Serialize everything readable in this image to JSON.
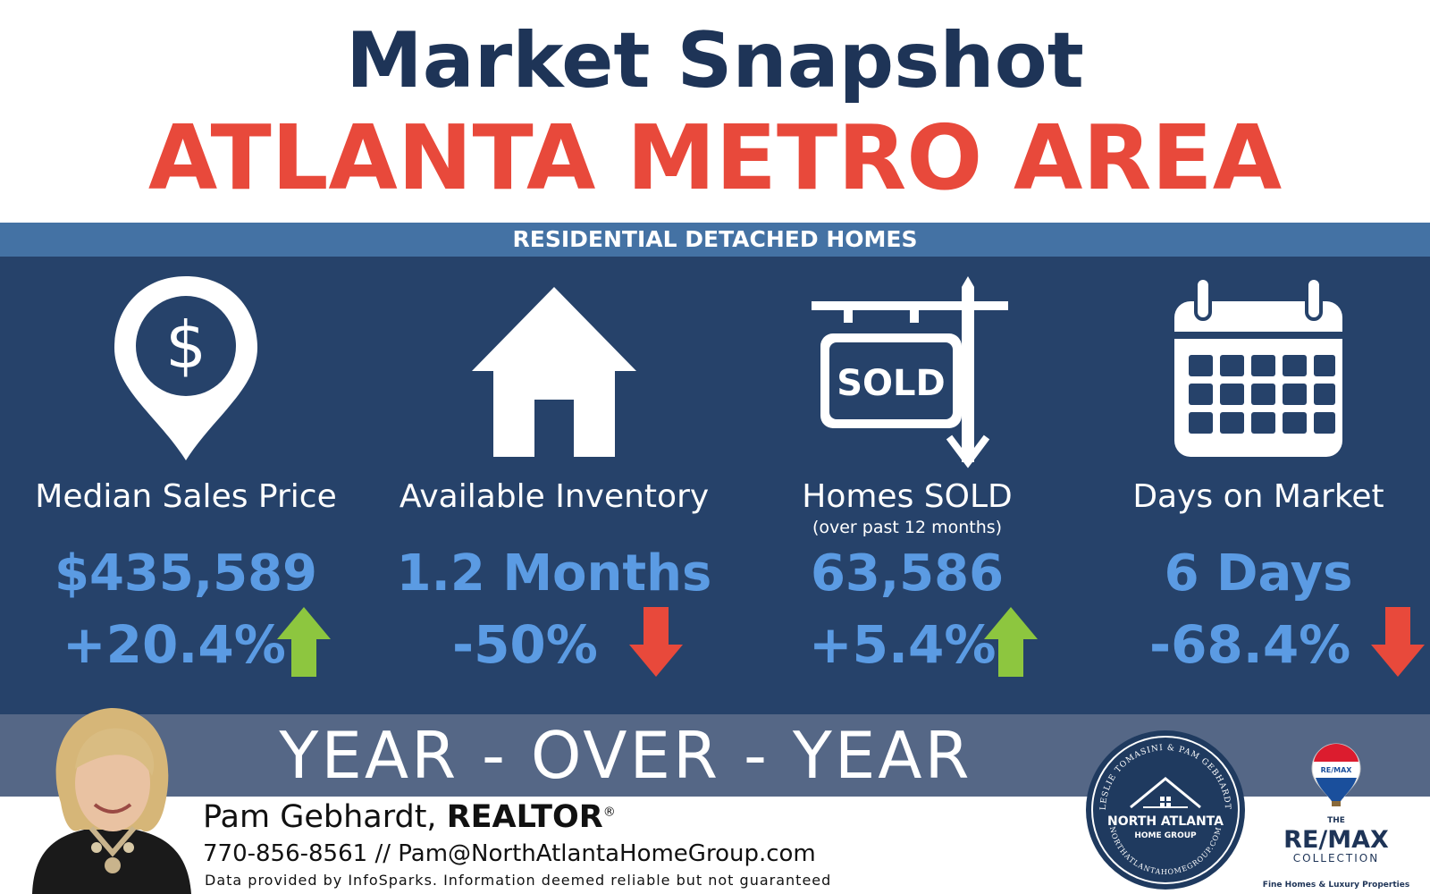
{
  "header": {
    "title": "Market Snapshot",
    "area": "ATLANTA METRO AREA"
  },
  "subheader": "RESIDENTIAL DETACHED HOMES",
  "stats": [
    {
      "icon": "dollar-location-pin-icon",
      "label": "Median Sales Price",
      "note": "",
      "value": "$435,589",
      "change": "+20.4%",
      "direction": "up"
    },
    {
      "icon": "house-icon",
      "label": "Available Inventory",
      "note": "",
      "value": "1.2 Months",
      "change": "-50%",
      "direction": "down"
    },
    {
      "icon": "sold-sign-icon",
      "label": "Homes SOLD",
      "note": "(over past 12 months)",
      "value": "63,586",
      "change": "+5.4%",
      "direction": "up"
    },
    {
      "icon": "calendar-icon",
      "label": "Days on Market",
      "note": "",
      "value": "6 Days",
      "change": "-68.4%",
      "direction": "down"
    }
  ],
  "sold_sign_text": "SOLD",
  "comparison": "YEAR - OVER - YEAR",
  "agent": {
    "name": "Pam Gebhardt,",
    "title": "REALTOR",
    "registered": "®",
    "phone": "770-856-8561",
    "separator": "//",
    "email": "Pam@NorthAtlantaHomeGroup.com",
    "disclaimer": "Data provided by InfoSparks. Information deemed reliable but not guaranteed"
  },
  "group_seal": {
    "ring_top": "LESLIE TOMASINI & PAM GEBHARDT",
    "name_line1": "NORTH ATLANTA",
    "name_line2": "HOME GROUP",
    "ring_bottom": "NORTHATLANTAHOMEGROUP.COM"
  },
  "brokerage": {
    "balloon_text": "RE/MAX",
    "the": "THE",
    "name": "RE/MAX",
    "collection": "COLLECTION",
    "tagline": "Fine Homes & Luxury Properties"
  },
  "colors": {
    "navy": "#1e3457",
    "red": "#e8493b",
    "band_blue": "#4472a4",
    "panel": "#26426a",
    "value_blue": "#5b9be3",
    "arrow_up": "#8dc63f",
    "arrow_down": "#e8493b",
    "yoy_band": "#556786"
  }
}
